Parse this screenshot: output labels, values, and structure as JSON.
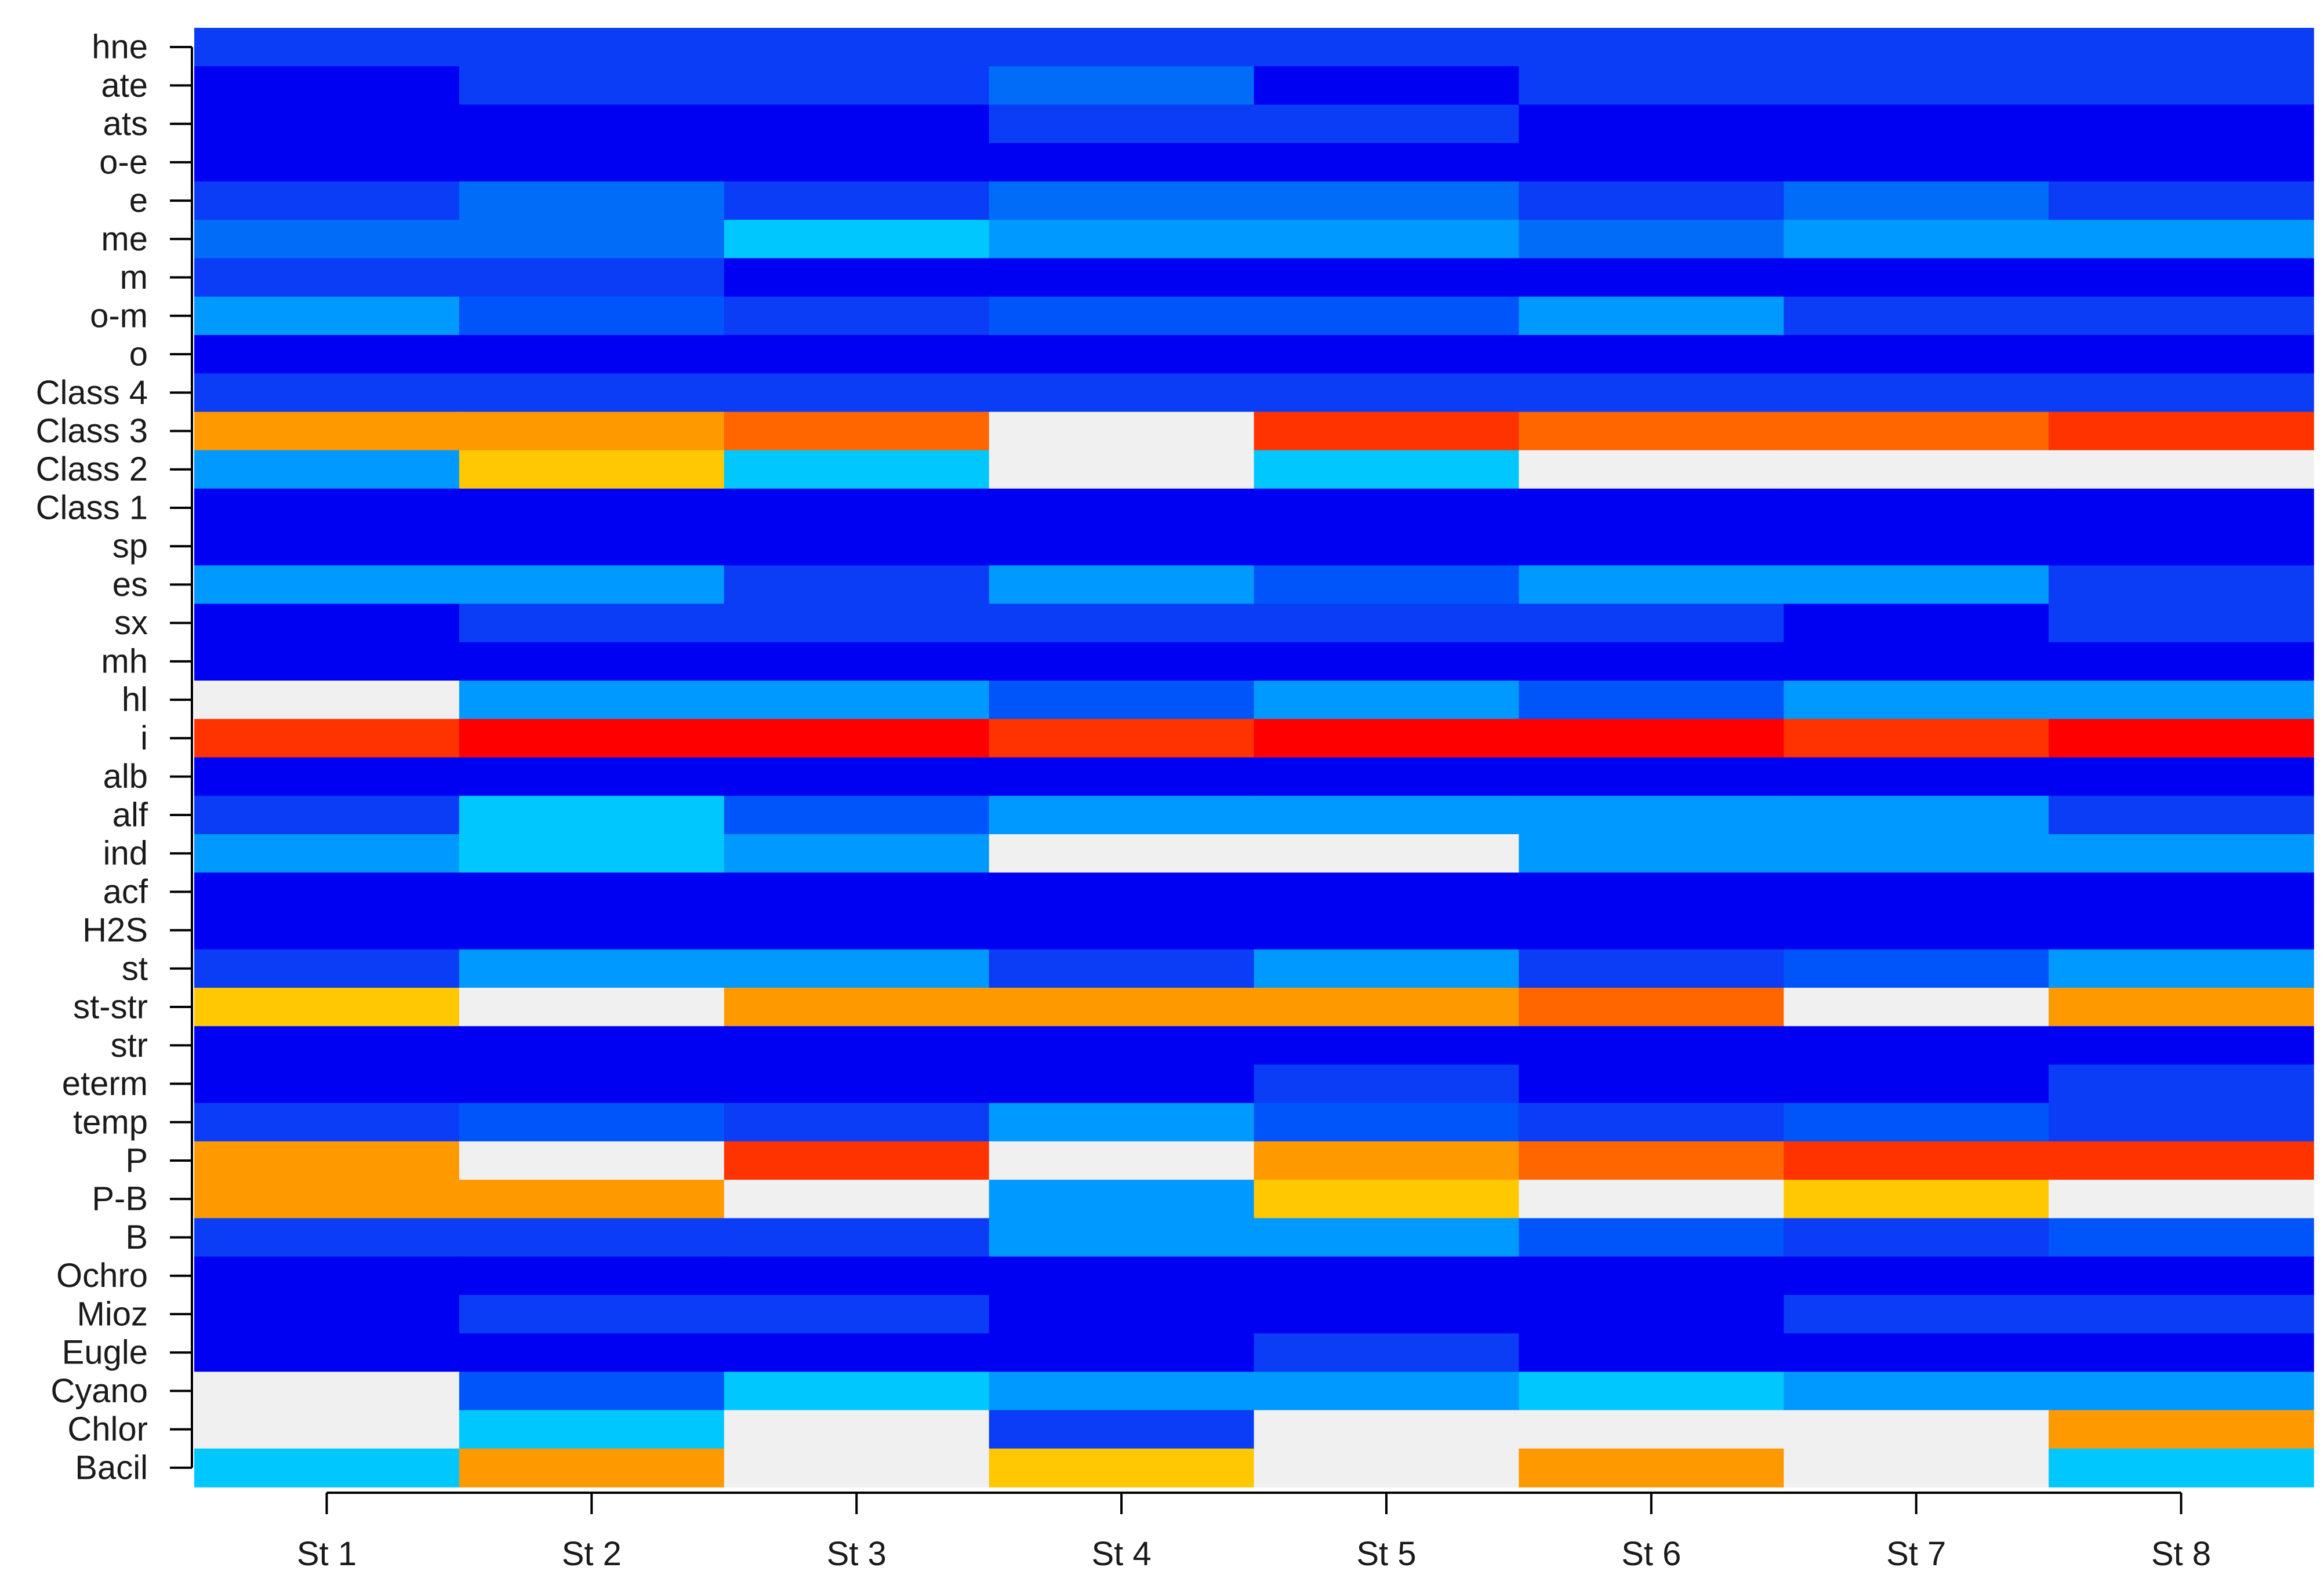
{
  "chart_data": {
    "type": "heatmap",
    "x_categories": [
      "St 1",
      "St 2",
      "St 3",
      "St 4",
      "St 5",
      "St 6",
      "St 7",
      "St 8"
    ],
    "y_categories": [
      "hne",
      "ate",
      "ats",
      "o-e",
      "e",
      "me",
      "m",
      "o-m",
      "o",
      "Class 4",
      "Class 3",
      "Class 2",
      "Class 1",
      "sp",
      "es",
      "sx",
      "mh",
      "hl",
      "i",
      "alb",
      "alf",
      "ind",
      "acf",
      "H2S",
      "st",
      "st-str",
      "str",
      "eterm",
      "temp",
      "P",
      "P-B",
      "B",
      "Ochro",
      "Mioz",
      "Eugle",
      "Cyano",
      "Chlor",
      "Bacil"
    ],
    "value_scale": "ordinal level 0-11 mapped to colour scale (0 = lowest/dark blue, 10 = highest/red, 11 = not present/light grey)",
    "colors": [
      "#0000f2",
      "#0524f5",
      "#0a3df5",
      "#0055fa",
      "#006cf7",
      "#0099ff",
      "#00c8ff",
      "#ffc800",
      "#ff9900",
      "#ff6600",
      "#ff3300",
      "#ff0000",
      "#f0f0f0"
    ],
    "levels": [
      [
        2,
        2,
        2,
        2,
        2,
        2,
        2,
        2
      ],
      [
        0,
        2,
        2,
        4,
        0,
        2,
        2,
        2
      ],
      [
        0,
        0,
        0,
        2,
        2,
        0,
        0,
        0
      ],
      [
        0,
        0,
        0,
        0,
        0,
        0,
        0,
        0
      ],
      [
        2,
        4,
        2,
        4,
        4,
        2,
        4,
        2
      ],
      [
        4,
        4,
        6,
        5,
        5,
        4,
        5,
        5
      ],
      [
        2,
        2,
        0,
        0,
        0,
        0,
        0,
        0
      ],
      [
        5,
        3,
        2,
        3,
        3,
        5,
        2,
        2
      ],
      [
        0,
        0,
        0,
        0,
        0,
        0,
        0,
        0
      ],
      [
        2,
        2,
        2,
        2,
        2,
        2,
        2,
        2
      ],
      [
        8,
        8,
        9,
        12,
        10,
        9,
        9,
        10
      ],
      [
        5,
        7,
        6,
        12,
        6,
        12,
        12,
        12
      ],
      [
        0,
        0,
        0,
        0,
        0,
        0,
        0,
        0
      ],
      [
        0,
        0,
        0,
        0,
        0,
        0,
        0,
        0
      ],
      [
        5,
        5,
        2,
        5,
        3,
        5,
        5,
        2
      ],
      [
        0,
        2,
        2,
        2,
        2,
        2,
        0,
        2
      ],
      [
        0,
        0,
        0,
        0,
        0,
        0,
        0,
        0
      ],
      [
        12,
        5,
        5,
        3,
        5,
        3,
        5,
        5
      ],
      [
        10,
        11,
        11,
        10,
        11,
        11,
        10,
        11
      ],
      [
        0,
        0,
        0,
        0,
        0,
        0,
        0,
        0
      ],
      [
        2,
        6,
        3,
        5,
        5,
        5,
        5,
        2
      ],
      [
        5,
        6,
        5,
        12,
        12,
        5,
        5,
        5
      ],
      [
        0,
        0,
        0,
        0,
        0,
        0,
        0,
        0
      ],
      [
        0,
        0,
        0,
        0,
        0,
        0,
        0,
        0
      ],
      [
        2,
        5,
        5,
        2,
        5,
        2,
        3,
        5
      ],
      [
        7,
        12,
        8,
        8,
        8,
        9,
        12,
        8
      ],
      [
        0,
        0,
        0,
        0,
        0,
        0,
        0,
        0
      ],
      [
        0,
        0,
        0,
        0,
        2,
        0,
        0,
        2
      ],
      [
        2,
        3,
        2,
        5,
        3,
        2,
        3,
        2
      ],
      [
        8,
        12,
        10,
        12,
        8,
        9,
        10,
        10
      ],
      [
        8,
        8,
        12,
        5,
        7,
        12,
        7,
        12
      ],
      [
        2,
        2,
        2,
        5,
        5,
        3,
        2,
        3
      ],
      [
        0,
        0,
        0,
        0,
        0,
        0,
        0,
        0
      ],
      [
        0,
        2,
        2,
        0,
        0,
        0,
        2,
        2
      ],
      [
        0,
        0,
        0,
        0,
        2,
        0,
        0,
        0
      ],
      [
        12,
        3,
        6,
        5,
        5,
        6,
        5,
        5
      ],
      [
        12,
        6,
        12,
        2,
        12,
        12,
        12,
        8
      ],
      [
        6,
        8,
        12,
        7,
        12,
        8,
        12,
        6
      ]
    ],
    "title": "",
    "xlabel": "",
    "ylabel": "",
    "legend": "none",
    "grid": false
  }
}
